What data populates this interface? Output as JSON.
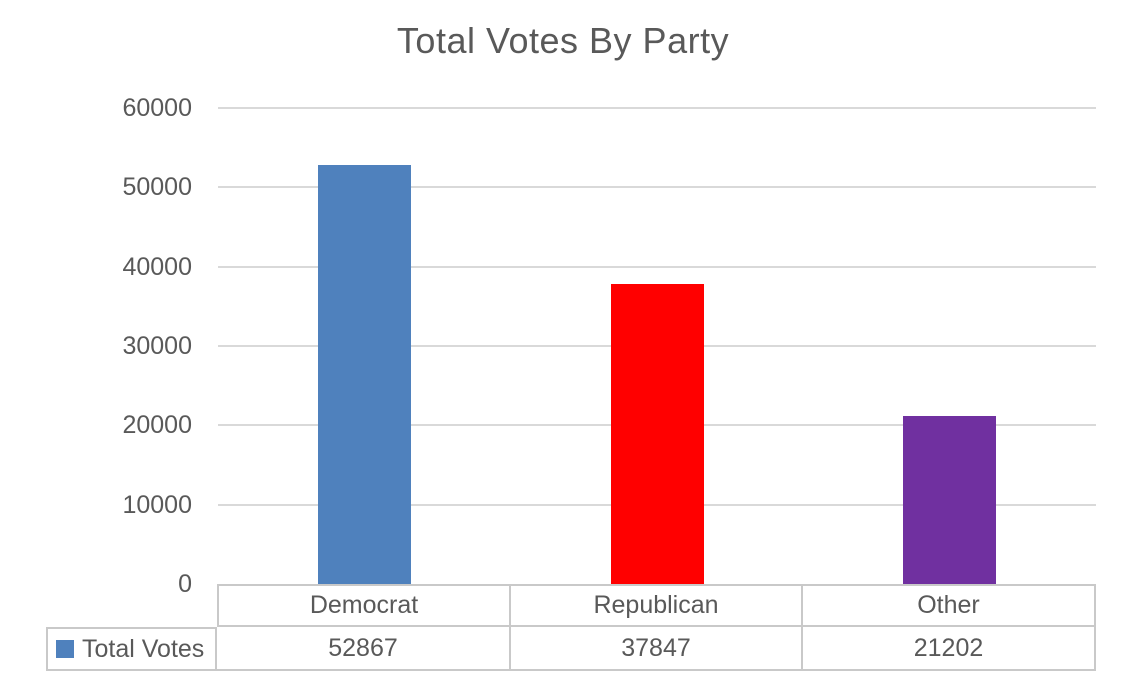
{
  "chart_data": {
    "type": "bar",
    "title": "Total Votes By Party",
    "categories": [
      "Democrat",
      "Republican",
      "Other"
    ],
    "series": [
      {
        "name": "Total Votes",
        "values": [
          52867,
          37847,
          21202
        ],
        "colors": [
          "#4F81BD",
          "#FF0000",
          "#7030A0"
        ]
      }
    ],
    "xlabel": "",
    "ylabel": "",
    "ylim": [
      0,
      60000
    ],
    "ytick_interval": 10000,
    "ytick_labels": [
      "0",
      "10000",
      "20000",
      "30000",
      "40000",
      "50000",
      "60000"
    ],
    "grid": true,
    "legend_position": "bottom-left-data-table",
    "data_table_shown": true
  },
  "legend": {
    "label": "Total Votes"
  },
  "colors": {
    "title_text": "#595959",
    "axis_text": "#595959",
    "gridline": "#D9D9D9",
    "table_border": "#C9C9C9",
    "legend_marker": "#4F81BD",
    "background": "#FFFFFF"
  }
}
